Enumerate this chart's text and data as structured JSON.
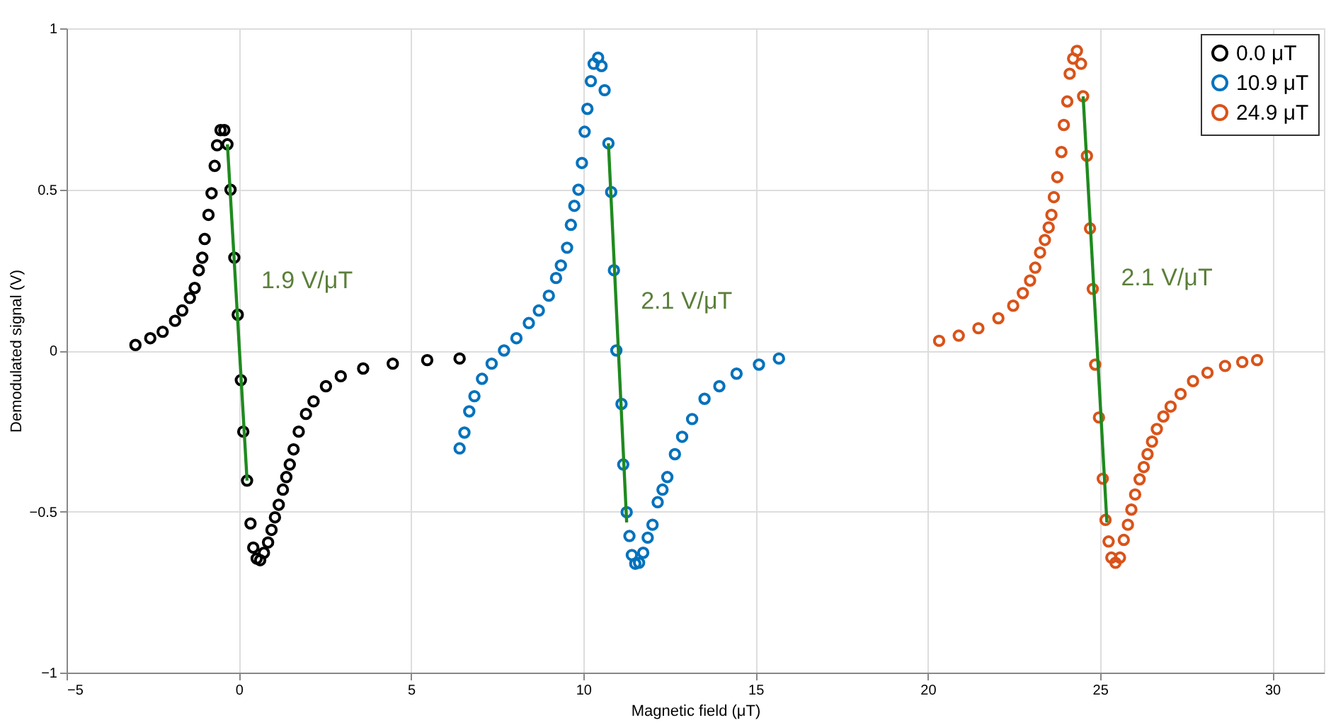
{
  "chart_data": {
    "type": "scatter",
    "xlabel": "Magnetic field (μT)",
    "ylabel": "Demodulated signal (V)",
    "xlim": [
      -5,
      31.5
    ],
    "xticks": [
      -5,
      0,
      5,
      10,
      15,
      20,
      25,
      30
    ],
    "ylim": [
      -1,
      1
    ],
    "yticks": [
      -1,
      -0.5,
      0,
      0.5,
      1
    ],
    "grid": true,
    "legend": "top right",
    "marker": "circle",
    "series": [
      {
        "name": "0.0 μT",
        "color": "#000000",
        "x": [
          -3.0,
          -2.57,
          -2.21,
          -1.85,
          -1.64,
          -1.42,
          -1.28,
          -1.16,
          -1.06,
          -0.99,
          -0.88,
          -0.79,
          -0.7,
          -0.63,
          -0.53,
          -0.42,
          -0.33,
          -0.24,
          -0.13,
          -0.03,
          0.06,
          0.13,
          0.24,
          0.34,
          0.42,
          0.52,
          0.62,
          0.73,
          0.85,
          0.95,
          1.05,
          1.16,
          1.28,
          1.38,
          1.48,
          1.59,
          1.74,
          1.95,
          2.17,
          2.53,
          2.96,
          3.61,
          4.47,
          5.47,
          6.41
        ],
        "values": [
          0.017,
          0.038,
          0.058,
          0.092,
          0.124,
          0.163,
          0.194,
          0.249,
          0.288,
          0.346,
          0.421,
          0.488,
          0.573,
          0.637,
          0.684,
          0.684,
          0.64,
          0.499,
          0.288,
          0.111,
          -0.092,
          -0.252,
          -0.404,
          -0.537,
          -0.612,
          -0.646,
          -0.651,
          -0.628,
          -0.596,
          -0.557,
          -0.518,
          -0.479,
          -0.432,
          -0.393,
          -0.354,
          -0.307,
          -0.252,
          -0.197,
          -0.158,
          -0.111,
          -0.08,
          -0.056,
          -0.041,
          -0.03,
          -0.025
        ]
      },
      {
        "name": "10.9 μT",
        "color": "#0072bd",
        "x": [
          6.41,
          6.55,
          6.69,
          6.84,
          7.06,
          7.34,
          7.7,
          8.06,
          8.42,
          8.71,
          9.0,
          9.21,
          9.35,
          9.53,
          9.64,
          9.74,
          9.86,
          9.96,
          10.04,
          10.12,
          10.22,
          10.3,
          10.43,
          10.53,
          10.62,
          10.73,
          10.81,
          10.89,
          10.96,
          11.11,
          11.16,
          11.26,
          11.34,
          11.41,
          11.51,
          11.62,
          11.74,
          11.87,
          12.01,
          12.16,
          12.3,
          12.44,
          12.66,
          12.87,
          13.16,
          13.52,
          13.95,
          14.45,
          15.1,
          15.68
        ],
        "values": [
          -0.304,
          -0.255,
          -0.189,
          -0.142,
          -0.088,
          -0.041,
          0.0,
          0.038,
          0.085,
          0.124,
          0.17,
          0.225,
          0.264,
          0.319,
          0.39,
          0.449,
          0.499,
          0.582,
          0.679,
          0.75,
          0.836,
          0.89,
          0.909,
          0.883,
          0.808,
          0.643,
          0.492,
          0.249,
          0.0,
          -0.166,
          -0.354,
          -0.502,
          -0.576,
          -0.635,
          -0.662,
          -0.659,
          -0.628,
          -0.581,
          -0.541,
          -0.471,
          -0.432,
          -0.393,
          -0.322,
          -0.268,
          -0.213,
          -0.15,
          -0.111,
          -0.072,
          -0.044,
          -0.025
        ]
      },
      {
        "name": "24.9 μT",
        "color": "#d95319",
        "x": [
          20.33,
          20.9,
          21.47,
          22.05,
          22.48,
          22.76,
          22.97,
          23.12,
          23.26,
          23.4,
          23.51,
          23.59,
          23.66,
          23.76,
          23.88,
          23.95,
          24.05,
          24.12,
          24.22,
          24.33,
          24.45,
          24.51,
          24.62,
          24.71,
          24.79,
          24.86,
          24.97,
          25.08,
          25.16,
          25.25,
          25.33,
          25.45,
          25.58,
          25.69,
          25.81,
          25.91,
          26.02,
          26.15,
          26.27,
          26.38,
          26.51,
          26.65,
          26.84,
          27.05,
          27.34,
          27.7,
          28.12,
          28.63,
          29.13,
          29.56
        ],
        "values": [
          0.03,
          0.046,
          0.069,
          0.1,
          0.139,
          0.178,
          0.217,
          0.257,
          0.304,
          0.343,
          0.382,
          0.421,
          0.476,
          0.538,
          0.616,
          0.7,
          0.773,
          0.859,
          0.906,
          0.93,
          0.89,
          0.789,
          0.604,
          0.379,
          0.191,
          -0.044,
          -0.208,
          -0.398,
          -0.526,
          -0.593,
          -0.643,
          -0.659,
          -0.643,
          -0.588,
          -0.541,
          -0.494,
          -0.447,
          -0.4,
          -0.362,
          -0.322,
          -0.283,
          -0.244,
          -0.205,
          -0.174,
          -0.135,
          -0.095,
          -0.069,
          -0.048,
          -0.036,
          -0.03
        ]
      },
      {
        "type": "line",
        "marker": "none",
        "line_style": "solid",
        "color": "#1f8a1f",
        "x": [
          -0.33,
          0.24
        ],
        "values": [
          0.64,
          -0.404
        ]
      },
      {
        "type": "line",
        "marker": "none",
        "line_style": "solid",
        "color": "#1f8a1f",
        "x": [
          10.73,
          11.26
        ],
        "values": [
          0.643,
          -0.534
        ]
      },
      {
        "type": "line",
        "marker": "none",
        "line_style": "solid",
        "color": "#1f8a1f",
        "x": [
          24.51,
          25.2
        ],
        "values": [
          0.789,
          -0.534
        ]
      }
    ],
    "annotations": [
      "1.9 V/μT",
      "2.1 V/μT",
      "2.1 V/μT"
    ]
  }
}
